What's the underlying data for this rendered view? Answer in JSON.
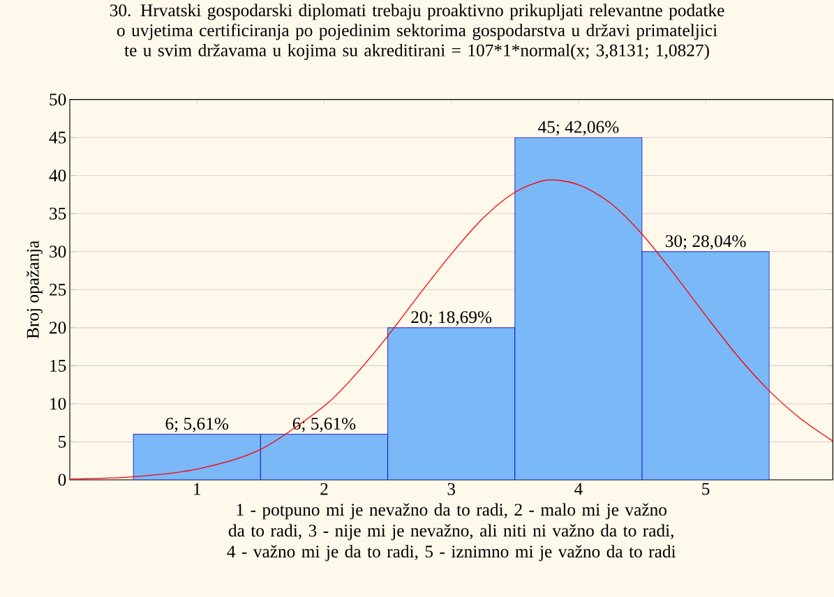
{
  "chart_data": {
    "type": "histogram",
    "title": "30.      Hrvatski gospodarski diplomati trebaju proaktivno prikupljati relevantne podatke o uvjetima certificiranja po pojedinim sektorima gospodarstva u državi primateljici te u svim državama u kojima su akreditirani = 107*1*normal(x; 3,8131; 1,0827)",
    "xlabel": "1 - potpuno mi je nevažno da to radi, 2 - malo mi je važno da to radi, 3 - nije mi je nevažno, ali niti ni važno da to radi, 4 -  važno mi je da to radi, 5 -  iznimno mi je važno da to radi",
    "ylabel": "Broj opažanja",
    "bins": [
      0.5,
      1.5,
      2.5,
      3.5,
      4.5,
      5.5
    ],
    "values": [
      6,
      6,
      20,
      45,
      30
    ],
    "value_labels": [
      "6; 5,61%",
      "6; 5,61%",
      "20; 18,69%",
      "45; 42,06%",
      "30; 28,04%"
    ],
    "color": "#7ab8f8",
    "series": [
      {
        "type": "line",
        "color": "#ff0000",
        "x": [
          0,
          0.5,
          1,
          1.5,
          2,
          2.25,
          2.5,
          2.75,
          3,
          3.25,
          3.5,
          3.75,
          4,
          4.25,
          4.5,
          4.75,
          5,
          5.25,
          5.5,
          5.75,
          6
        ],
        "values": [
          0.1,
          0.4,
          1.4,
          4,
          9.7,
          13.9,
          18.9,
          24.4,
          29.7,
          34.4,
          37.8,
          39.4,
          38.8,
          36.4,
          32.3,
          27.1,
          21.6,
          16.3,
          11.7,
          8,
          5.1
        ]
      }
    ],
    "xlim": [
      0,
      6
    ],
    "ylim": [
      0,
      50
    ],
    "xticks": [
      1,
      2,
      3,
      4,
      5
    ],
    "yticks": [
      0,
      5,
      10,
      15,
      20,
      25,
      30,
      35,
      40,
      45,
      50
    ],
    "grid": "y",
    "marker": "none",
    "line_style": "solid"
  }
}
